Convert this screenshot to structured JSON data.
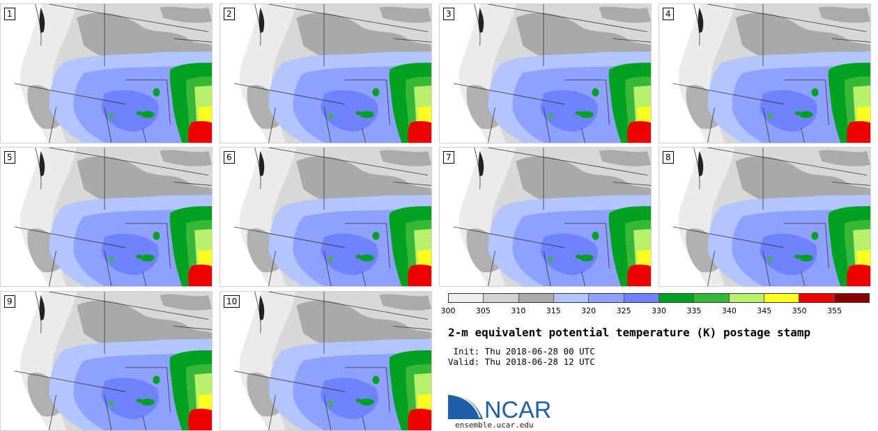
{
  "panels": [
    "1",
    "2",
    "3",
    "4",
    "5",
    "6",
    "7",
    "8",
    "9",
    "10"
  ],
  "colorbar": {
    "colors": [
      "#eeeeee",
      "#d3d3d3",
      "#aaaaaa",
      "#b3c5ff",
      "#8fa1ff",
      "#6f82ff",
      "#00a020",
      "#38b838",
      "#b8f06c",
      "#ffff20",
      "#ee0000",
      "#880000"
    ],
    "labels": [
      "300",
      "305",
      "310",
      "315",
      "320",
      "325",
      "330",
      "335",
      "340",
      "345",
      "350",
      "355"
    ]
  },
  "title": "2-m equivalent potential temperature (K) postage stamp",
  "init": " Init: Thu 2018-06-28 00 UTC",
  "valid": "Valid: Thu 2018-06-28 12 UTC",
  "logo": {
    "text": "NCAR",
    "color": "#1f5fa8"
  },
  "site": "ensemble.ucar.edu",
  "map_icon": "western-us-theta-e-map-icon"
}
